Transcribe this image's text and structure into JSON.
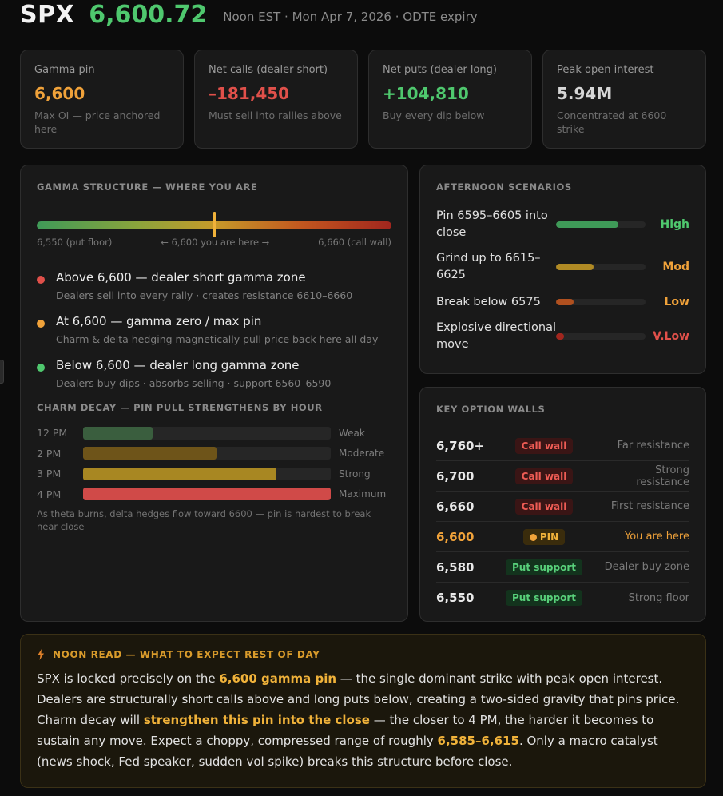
{
  "header": {
    "ticker": "SPX",
    "price": "6,600.72",
    "subtitle": "Noon EST · Mon Apr 7, 2026 · ODTE expiry"
  },
  "stats": [
    {
      "label": "Gamma pin",
      "value": "6,600",
      "note": "Max OI — price anchored here",
      "color": "#f0a23a"
    },
    {
      "label": "Net calls (dealer short)",
      "value": "–181,450",
      "note": "Must sell into rallies above",
      "color": "#e0504a"
    },
    {
      "label": "Net puts (dealer long)",
      "value": "+104,810",
      "note": "Buy every dip below",
      "color": "#4fc86e"
    },
    {
      "label": "Peak open interest",
      "value": "5.94M",
      "note": "Concentrated at 6600 strike",
      "color": "#d6d6d6"
    }
  ],
  "gamma": {
    "title": "Gamma structure — where you are",
    "marker_position_fraction": 0.5,
    "scale_left": "6,550 (put floor)",
    "scale_mid": "← 6,600 you are here →",
    "scale_right": "6,660 (call wall)",
    "zones": [
      {
        "title": "Above 6,600 — dealer short gamma zone",
        "desc": "Dealers sell into every rally · creates resistance 6610–6660",
        "color": "#e0504a"
      },
      {
        "title": "At 6,600 — gamma zero / max pin",
        "desc": "Charm & delta hedging magnetically pull price back here all day",
        "color": "#f0a23a"
      },
      {
        "title": "Below 6,600 — dealer long gamma zone",
        "desc": "Dealers buy dips · absorbs selling · support 6560–6590",
        "color": "#4fc86e"
      }
    ],
    "charm_title": "Charm decay — pin pull strengthens by hour",
    "charm": [
      {
        "time": "12 PM",
        "strength": 0.28,
        "label": "Weak",
        "color": "#3a5e3e"
      },
      {
        "time": "2 PM",
        "strength": 0.54,
        "label": "Moderate",
        "color": "#6e5419"
      },
      {
        "time": "3 PM",
        "strength": 0.78,
        "label": "Strong",
        "color": "#a88722"
      },
      {
        "time": "4 PM",
        "strength": 1.0,
        "label": "Maximum",
        "color": "#d04a48"
      }
    ],
    "charm_note": "As theta burns, delta hedges flow toward 6600 — pin is hardest to break near close"
  },
  "scenarios": {
    "title": "Afternoon scenarios",
    "items": [
      {
        "name": "Pin 6595–6605 into close",
        "fill": 0.7,
        "prob": "High",
        "color": "#3f9a58",
        "text_color": "#4fc86e"
      },
      {
        "name": "Grind up to 6615–6625",
        "fill": 0.42,
        "prob": "Mod",
        "color": "#b08a24",
        "text_color": "#f0a23a"
      },
      {
        "name": "Break below 6575",
        "fill": 0.2,
        "prob": "Low",
        "color": "#b0501f",
        "text_color": "#f0a23a"
      },
      {
        "name": "Explosive directional move",
        "fill": 0.09,
        "prob": "V.Low",
        "color": "#a1261e",
        "text_color": "#e0504a"
      }
    ]
  },
  "walls": {
    "title": "Key option walls",
    "rows": [
      {
        "strike": "6,760+",
        "tag": "Call wall",
        "desc": "Far resistance",
        "kind": "call"
      },
      {
        "strike": "6,700",
        "tag": "Call wall",
        "desc": "Strong resistance",
        "kind": "call"
      },
      {
        "strike": "6,660",
        "tag": "Call wall",
        "desc": "First resistance",
        "kind": "call"
      },
      {
        "strike": "6,600",
        "tag": "PIN",
        "desc": "You are here",
        "kind": "pin"
      },
      {
        "strike": "6,580",
        "tag": "Put support",
        "desc": "Dealer buy zone",
        "kind": "put"
      },
      {
        "strike": "6,550",
        "tag": "Put support",
        "desc": "Strong floor",
        "kind": "put"
      }
    ]
  },
  "noon": {
    "title": "Noon read — what to expect rest of day",
    "t1": "SPX is locked precisely on the ",
    "h1": "6,600 gamma pin",
    "t2": " — the single dominant strike with peak open interest. Dealers are structurally short calls above and long puts below, creating a two-sided gravity that pins price. Charm decay will ",
    "h2": "strengthen this pin into the close",
    "t3": " — the closer to 4 PM, the harder it becomes to sustain any move. Expect a choppy, compressed range of roughly ",
    "h3": "6,585–6,615",
    "t4": ". Only a macro catalyst (news shock, Fed speaker, sudden vol spike) breaks this structure before close."
  }
}
